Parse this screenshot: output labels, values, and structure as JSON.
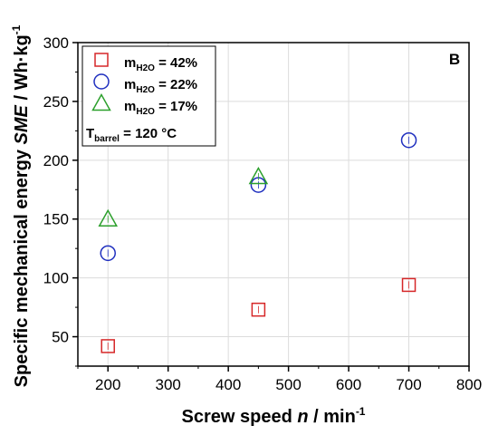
{
  "chart_data": {
    "type": "scatter",
    "panel_label": "B",
    "xlabel": {
      "main": "Screw speed ",
      "var": "n",
      "unit": " / min",
      "sup": "-1"
    },
    "ylabel": {
      "main": "Specific mechanical energy ",
      "var": "SME",
      "unit": " / Wh·kg",
      "sup": "-1"
    },
    "xlim": [
      150,
      800
    ],
    "ylim": [
      25,
      300
    ],
    "xticks": [
      200,
      300,
      400,
      500,
      600,
      700,
      800
    ],
    "yticks": [
      50,
      100,
      150,
      200,
      250,
      300
    ],
    "grid": true,
    "legend_position": "top-left",
    "series": [
      {
        "name": "m",
        "sub": "H2O",
        "suffix": " = 42%",
        "marker": "square",
        "color": "#d62728",
        "x": [
          200,
          450,
          700
        ],
        "y": [
          42,
          73,
          94
        ]
      },
      {
        "name": "m",
        "sub": "H2O",
        "suffix": " = 22%",
        "marker": "circle",
        "color": "#1f2fbf",
        "x": [
          200,
          450,
          700
        ],
        "y": [
          121,
          179,
          217
        ]
      },
      {
        "name": "m",
        "sub": "H2O",
        "suffix": " = 17%",
        "marker": "triangle",
        "color": "#2ca02c",
        "x": [
          200,
          450
        ],
        "y": [
          150,
          186
        ]
      }
    ],
    "annotation": {
      "main": "T",
      "sub": "barrel",
      "suffix": " = 120 °C"
    }
  }
}
